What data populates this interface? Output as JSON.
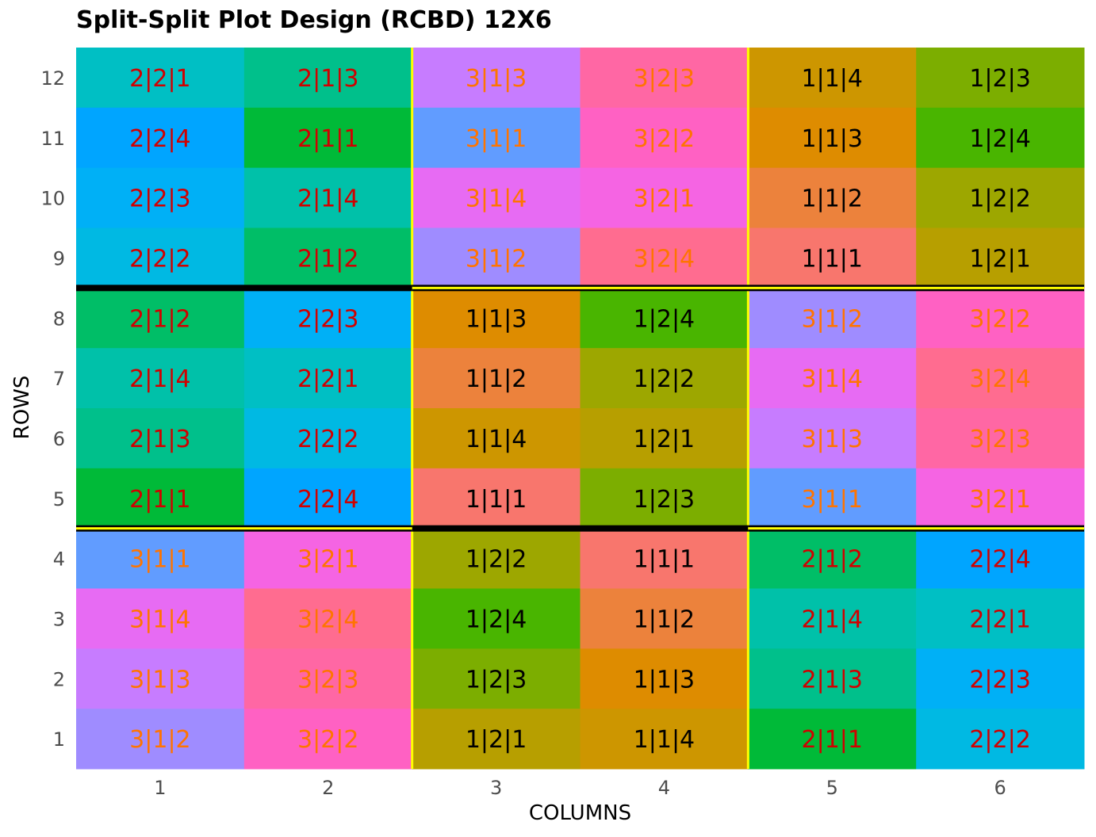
{
  "chart_data": {
    "type": "heatmap",
    "title": "Split-Split Plot Design (RCBD) 12X6",
    "xlabel": "COLUMNS",
    "ylabel": "ROWS",
    "x_ticks": [
      "1",
      "2",
      "3",
      "4",
      "5",
      "6"
    ],
    "y_ticks": [
      "1",
      "2",
      "3",
      "4",
      "5",
      "6",
      "7",
      "8",
      "9",
      "10",
      "11",
      "12"
    ],
    "grid": false,
    "n_rows": 12,
    "n_cols": 6,
    "treatment_colors": {
      "1|1|1": "#F8766D",
      "1|1|2": "#EC823C",
      "1|1|3": "#DE8C00",
      "1|1|4": "#CD9600",
      "1|2|1": "#B79F00",
      "1|2|2": "#9DA700",
      "1|2|3": "#7CAE00",
      "1|2|4": "#49B500",
      "2|1|1": "#00BA38",
      "2|1|2": "#00BE67",
      "2|1|3": "#00C08B",
      "2|1|4": "#00C1A9",
      "2|2|1": "#00BFC4",
      "2|2|2": "#00B9E3",
      "2|2|3": "#00B0F6",
      "2|2|4": "#00A5FF",
      "3|1|1": "#619CFF",
      "3|1|2": "#9F8CFF",
      "3|1|3": "#C77CFF",
      "3|1|4": "#E76BF3",
      "3|2|1": "#F564E3",
      "3|2|2": "#FF61C3",
      "3|2|3": "#FF67A4",
      "3|2|4": "#FF6C90"
    },
    "text_colors": {
      "1": "#000000",
      "2": "#D00000",
      "3": "#FF7400"
    },
    "cells": [
      {
        "row": 12,
        "values": [
          "2|2|1",
          "2|1|3",
          "3|1|3",
          "3|2|3",
          "1|1|4",
          "1|2|3"
        ]
      },
      {
        "row": 11,
        "values": [
          "2|2|4",
          "2|1|1",
          "3|1|1",
          "3|2|2",
          "1|1|3",
          "1|2|4"
        ]
      },
      {
        "row": 10,
        "values": [
          "2|2|3",
          "2|1|4",
          "3|1|4",
          "3|2|1",
          "1|1|2",
          "1|2|2"
        ]
      },
      {
        "row": 9,
        "values": [
          "2|2|2",
          "2|1|2",
          "3|1|2",
          "3|2|4",
          "1|1|1",
          "1|2|1"
        ]
      },
      {
        "row": 8,
        "values": [
          "2|1|2",
          "2|2|3",
          "1|1|3",
          "1|2|4",
          "3|1|2",
          "3|2|2"
        ]
      },
      {
        "row": 7,
        "values": [
          "2|1|4",
          "2|2|1",
          "1|1|2",
          "1|2|2",
          "3|1|4",
          "3|2|4"
        ]
      },
      {
        "row": 6,
        "values": [
          "2|1|3",
          "2|2|2",
          "1|1|4",
          "1|2|1",
          "3|1|3",
          "3|2|3"
        ]
      },
      {
        "row": 5,
        "values": [
          "2|1|1",
          "2|2|4",
          "1|1|1",
          "1|2|3",
          "3|1|1",
          "3|2|1"
        ]
      },
      {
        "row": 4,
        "values": [
          "3|1|1",
          "3|2|1",
          "1|2|2",
          "1|1|1",
          "2|1|2",
          "2|2|4"
        ]
      },
      {
        "row": 3,
        "values": [
          "3|1|4",
          "3|2|4",
          "1|2|4",
          "1|1|2",
          "2|1|4",
          "2|2|1"
        ]
      },
      {
        "row": 2,
        "values": [
          "3|1|3",
          "3|2|3",
          "1|2|3",
          "1|1|3",
          "2|1|3",
          "2|2|3"
        ]
      },
      {
        "row": 1,
        "values": [
          "3|1|2",
          "3|2|2",
          "1|2|1",
          "1|1|4",
          "2|1|1",
          "2|2|2"
        ]
      }
    ],
    "block_lines": {
      "color": "#FFFF00",
      "vertical_after_columns": [
        2,
        4
      ],
      "horizontal_after_rows": [
        4,
        8
      ]
    },
    "plot_lines": {
      "color": "#000000",
      "thick_horizontal": [
        {
          "after_row": 8,
          "col_from": 1,
          "col_to": 2
        },
        {
          "after_row": 4,
          "col_from": 3,
          "col_to": 4
        }
      ],
      "double_horizontal": [
        {
          "after_row": 8,
          "col_from": 3,
          "col_to": 6
        },
        {
          "after_row": 4,
          "col_from": 1,
          "col_to": 2
        },
        {
          "after_row": 4,
          "col_from": 5,
          "col_to": 6
        }
      ]
    }
  }
}
